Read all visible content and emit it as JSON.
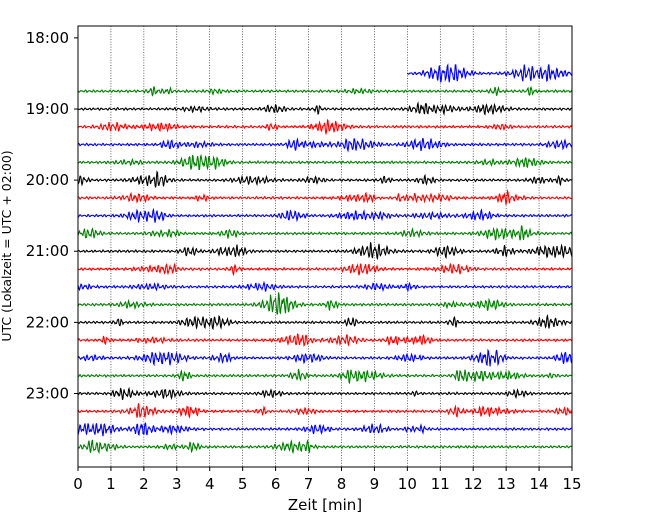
{
  "chart_data": {
    "type": "line",
    "title": "",
    "xlabel": "Zeit  [min]",
    "ylabel": "UTC (Lokalzeit = UTC + 02:00)",
    "xlim": [
      0,
      15
    ],
    "x_ticks": [
      0,
      1,
      2,
      3,
      4,
      5,
      6,
      7,
      8,
      9,
      10,
      11,
      12,
      13,
      14,
      15
    ],
    "y_range_minutes": [
      "17:50",
      "24:02"
    ],
    "y_ticks": [
      "18:00",
      "19:00",
      "20:00",
      "21:00",
      "22:00",
      "23:00"
    ],
    "grid": "vertical dotted at each minute",
    "series_colors": [
      "#0000ff",
      "#008000",
      "#000000",
      "#ff0000"
    ],
    "rows": [
      {
        "start": "18:30",
        "x_from": 10,
        "x_to": 15,
        "color": "#0000ff"
      },
      {
        "start": "18:45",
        "x_from": 0,
        "x_to": 15,
        "color": "#008000"
      },
      {
        "start": "19:00",
        "x_from": 0,
        "x_to": 15,
        "color": "#000000"
      },
      {
        "start": "19:15",
        "x_from": 0,
        "x_to": 15,
        "color": "#ff0000"
      },
      {
        "start": "19:30",
        "x_from": 0,
        "x_to": 15,
        "color": "#0000ff"
      },
      {
        "start": "19:45",
        "x_from": 0,
        "x_to": 15,
        "color": "#008000"
      },
      {
        "start": "20:00",
        "x_from": 0,
        "x_to": 15,
        "color": "#000000"
      },
      {
        "start": "20:15",
        "x_from": 0,
        "x_to": 15,
        "color": "#ff0000"
      },
      {
        "start": "20:30",
        "x_from": 0,
        "x_to": 15,
        "color": "#0000ff"
      },
      {
        "start": "20:45",
        "x_from": 0,
        "x_to": 15,
        "color": "#008000"
      },
      {
        "start": "21:00",
        "x_from": 0,
        "x_to": 15,
        "color": "#000000"
      },
      {
        "start": "21:15",
        "x_from": 0,
        "x_to": 15,
        "color": "#ff0000"
      },
      {
        "start": "21:30",
        "x_from": 0,
        "x_to": 15,
        "color": "#0000ff"
      },
      {
        "start": "21:45",
        "x_from": 0,
        "x_to": 15,
        "color": "#008000"
      },
      {
        "start": "22:00",
        "x_from": 0,
        "x_to": 15,
        "color": "#000000"
      },
      {
        "start": "22:15",
        "x_from": 0,
        "x_to": 15,
        "color": "#ff0000"
      },
      {
        "start": "22:30",
        "x_from": 0,
        "x_to": 15,
        "color": "#0000ff"
      },
      {
        "start": "22:45",
        "x_from": 0,
        "x_to": 15,
        "color": "#008000"
      },
      {
        "start": "23:00",
        "x_from": 0,
        "x_to": 15,
        "color": "#000000"
      },
      {
        "start": "23:15",
        "x_from": 0,
        "x_to": 15,
        "color": "#ff0000"
      },
      {
        "start": "23:30",
        "x_from": 0,
        "x_to": 15,
        "color": "#0000ff"
      },
      {
        "start": "23:45",
        "x_from": 0,
        "x_to": 15,
        "color": "#008000"
      }
    ]
  }
}
